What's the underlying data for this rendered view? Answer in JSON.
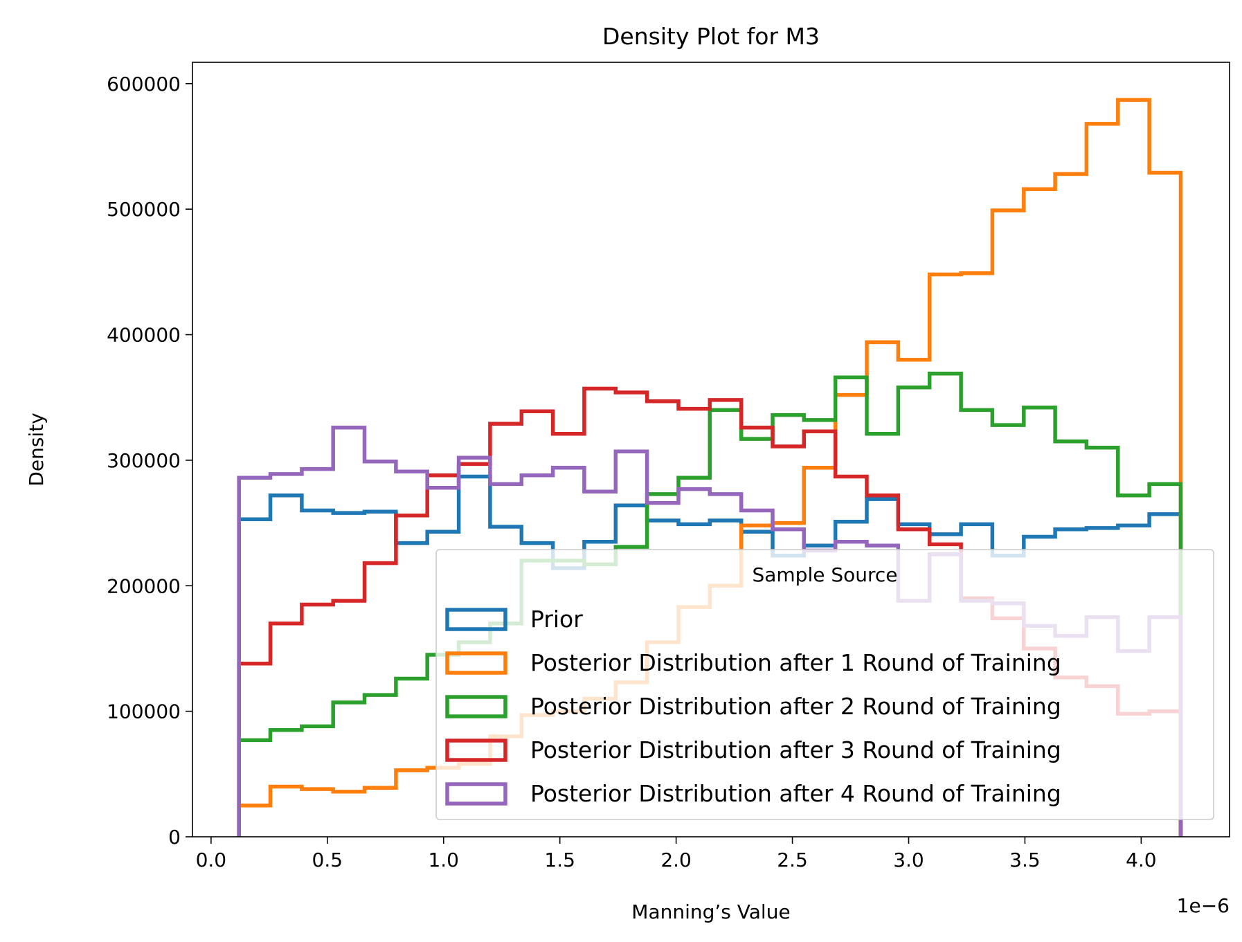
{
  "chart_data": {
    "type": "histogram-step",
    "title": "Density Plot for M3",
    "xlabel": "Manning’s Value",
    "ylabel": "Density",
    "x_offset_label": "1e−6",
    "xlim": [
      -0.08,
      4.38
    ],
    "ylim": [
      0,
      617000
    ],
    "x_ticks": [
      0.0,
      0.5,
      1.0,
      1.5,
      2.0,
      2.5,
      3.0,
      3.5,
      4.0
    ],
    "x_tick_labels": [
      "0.0",
      "0.5",
      "1.0",
      "1.5",
      "2.0",
      "2.5",
      "3.0",
      "3.5",
      "4.0"
    ],
    "y_ticks": [
      0,
      100000,
      200000,
      300000,
      400000,
      500000,
      600000
    ],
    "y_tick_labels": [
      "0",
      "100000",
      "200000",
      "300000",
      "400000",
      "500000",
      "600000"
    ],
    "bin_edges": [
      0.12,
      0.255,
      0.39,
      0.525,
      0.66,
      0.795,
      0.93,
      1.065,
      1.2,
      1.335,
      1.47,
      1.605,
      1.74,
      1.875,
      2.01,
      2.145,
      2.28,
      2.415,
      2.55,
      2.685,
      2.82,
      2.955,
      3.09,
      3.225,
      3.36,
      3.495,
      3.63,
      3.765,
      3.9,
      4.035,
      4.17
    ],
    "legend": {
      "title": "Sample Source",
      "placement": "lower-right"
    },
    "series": [
      {
        "name": "Prior",
        "color": "#1f77b4",
        "values": [
          253000,
          272000,
          260000,
          258000,
          259000,
          234000,
          243000,
          287000,
          247000,
          234000,
          214000,
          235000,
          264000,
          252000,
          249000,
          252000,
          243000,
          224000,
          232000,
          251000,
          269000,
          249000,
          241000,
          249000,
          224000,
          239000,
          245000,
          246000,
          248000,
          257000
        ]
      },
      {
        "name": "Posterior Distribution after 1 Round of Training",
        "color": "#ff7f0e",
        "values": [
          25000,
          40000,
          38000,
          36000,
          39000,
          53000,
          55000,
          58000,
          80000,
          97000,
          100000,
          110000,
          123000,
          155000,
          183000,
          200000,
          248000,
          250000,
          294000,
          352000,
          394000,
          380000,
          448000,
          449000,
          499000,
          516000,
          528000,
          568000,
          587000,
          529000
        ]
      },
      {
        "name": "Posterior Distribution after 2 Round of Training",
        "color": "#2ca02c",
        "values": [
          77000,
          85000,
          88000,
          107000,
          113000,
          126000,
          145000,
          155000,
          170000,
          220000,
          220000,
          217000,
          231000,
          273000,
          286000,
          340000,
          317000,
          336000,
          332000,
          366000,
          321000,
          358000,
          369000,
          340000,
          328000,
          342000,
          315000,
          310000,
          272000,
          281000
        ]
      },
      {
        "name": "Posterior Distribution after 3 Round of Training",
        "color": "#d62728",
        "values": [
          138000,
          170000,
          185000,
          188000,
          218000,
          256000,
          288000,
          297000,
          329000,
          339000,
          321000,
          357000,
          354000,
          347000,
          341000,
          348000,
          326000,
          311000,
          323000,
          287000,
          272000,
          245000,
          233000,
          190000,
          174000,
          150000,
          127000,
          120000,
          98000,
          100000
        ]
      },
      {
        "name": "Posterior Distribution after 4 Round of Training",
        "color": "#9467bd",
        "values": [
          286000,
          289000,
          293000,
          326000,
          299000,
          291000,
          278000,
          302000,
          281000,
          288000,
          294000,
          275000,
          307000,
          266000,
          277000,
          273000,
          260000,
          245000,
          228000,
          235000,
          232000,
          188000,
          225000,
          188000,
          186000,
          168000,
          160000,
          175000,
          148000,
          175000
        ]
      }
    ]
  }
}
